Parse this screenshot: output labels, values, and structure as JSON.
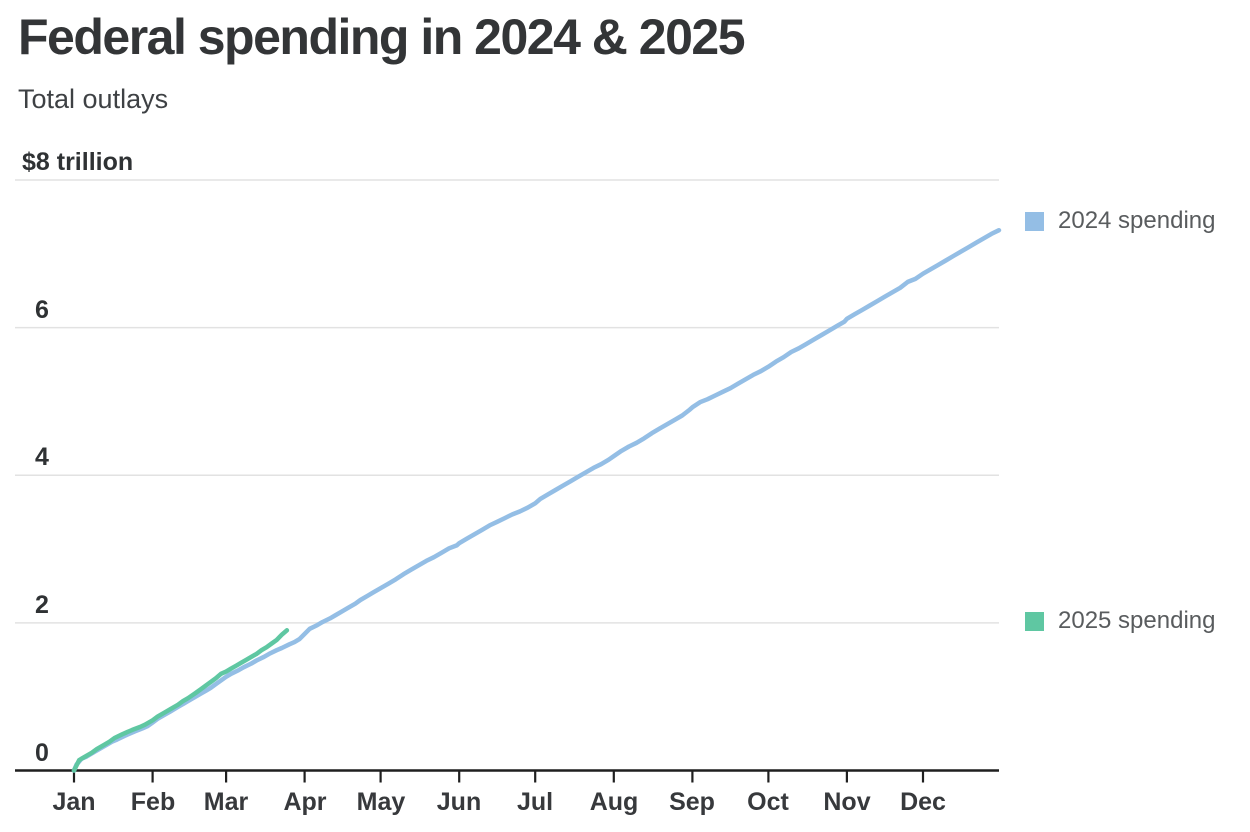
{
  "header": {
    "title": "Federal spending in 2024 & 2025",
    "subtitle": "Total outlays"
  },
  "legend": [
    {
      "label": "2024 spending",
      "color": "#94bee5"
    },
    {
      "label": "2025 spending",
      "color": "#5fc7a2"
    }
  ],
  "colors": {
    "background": "#ffffff",
    "title": "#333537",
    "subtitle": "#3e4144",
    "axis": "#1f1f1f",
    "gridline": "#e2e2e2",
    "y_tick_label": "#2f3234",
    "x_tick_label": "#37393c",
    "legend_text": "#595c5e",
    "series_2024": "#94bee5",
    "series_2025": "#5fc7a2"
  },
  "chart_data": {
    "type": "line",
    "title": "Federal spending in 2024 & 2025",
    "subtitle": "Total outlays",
    "unit": "trillion USD, cumulative total outlays",
    "x_unit": "day of year",
    "x_range_days": [
      0,
      365
    ],
    "x_tick_labels": [
      "Jan",
      "Feb",
      "Mar",
      "Apr",
      "May",
      "Jun",
      "Jul",
      "Aug",
      "Sep",
      "Oct",
      "Nov",
      "Dec"
    ],
    "x_tick_days": [
      0,
      31,
      60,
      91,
      121,
      152,
      182,
      213,
      244,
      274,
      305,
      335
    ],
    "y_ticks": [
      {
        "value": 8,
        "label": "$8 trillion"
      },
      {
        "value": 6,
        "label": "6"
      },
      {
        "value": 4,
        "label": "4"
      },
      {
        "value": 2,
        "label": "2"
      },
      {
        "value": 0,
        "label": "0"
      }
    ],
    "ylim": [
      0,
      8
    ],
    "grid": "horizontal",
    "legend_position": "right",
    "series": [
      {
        "name": "2024 spending",
        "color": "#94bee5",
        "points": [
          [
            0,
            0
          ],
          [
            1,
            0.08
          ],
          [
            3,
            0.16
          ],
          [
            5,
            0.19
          ],
          [
            8,
            0.25
          ],
          [
            10,
            0.29
          ],
          [
            13,
            0.35
          ],
          [
            15,
            0.39
          ],
          [
            17,
            0.42
          ],
          [
            20,
            0.47
          ],
          [
            22,
            0.5
          ],
          [
            24,
            0.53
          ],
          [
            27,
            0.57
          ],
          [
            29,
            0.6
          ],
          [
            31,
            0.65
          ],
          [
            33,
            0.7
          ],
          [
            36,
            0.76
          ],
          [
            38,
            0.8
          ],
          [
            41,
            0.86
          ],
          [
            43,
            0.9
          ],
          [
            45,
            0.94
          ],
          [
            48,
            1.0
          ],
          [
            50,
            1.04
          ],
          [
            52,
            1.08
          ],
          [
            54,
            1.12
          ],
          [
            56,
            1.17
          ],
          [
            58,
            1.22
          ],
          [
            60,
            1.27
          ],
          [
            62,
            1.31
          ],
          [
            65,
            1.36
          ],
          [
            67,
            1.4
          ],
          [
            70,
            1.45
          ],
          [
            72,
            1.49
          ],
          [
            75,
            1.54
          ],
          [
            77,
            1.58
          ],
          [
            80,
            1.63
          ],
          [
            82,
            1.66
          ],
          [
            85,
            1.71
          ],
          [
            87,
            1.74
          ],
          [
            89,
            1.78
          ],
          [
            91,
            1.85
          ],
          [
            93,
            1.92
          ],
          [
            96,
            1.97
          ],
          [
            98,
            2.01
          ],
          [
            101,
            2.06
          ],
          [
            103,
            2.1
          ],
          [
            106,
            2.16
          ],
          [
            108,
            2.2
          ],
          [
            111,
            2.26
          ],
          [
            113,
            2.31
          ],
          [
            116,
            2.37
          ],
          [
            118,
            2.41
          ],
          [
            121,
            2.47
          ],
          [
            124,
            2.53
          ],
          [
            127,
            2.59
          ],
          [
            130,
            2.66
          ],
          [
            133,
            2.72
          ],
          [
            136,
            2.78
          ],
          [
            139,
            2.84
          ],
          [
            142,
            2.89
          ],
          [
            145,
            2.95
          ],
          [
            148,
            3.01
          ],
          [
            151,
            3.05
          ],
          [
            152,
            3.08
          ],
          [
            155,
            3.14
          ],
          [
            158,
            3.2
          ],
          [
            161,
            3.26
          ],
          [
            164,
            3.32
          ],
          [
            167,
            3.37
          ],
          [
            170,
            3.42
          ],
          [
            173,
            3.47
          ],
          [
            176,
            3.51
          ],
          [
            179,
            3.56
          ],
          [
            182,
            3.62
          ],
          [
            184,
            3.68
          ],
          [
            187,
            3.74
          ],
          [
            190,
            3.8
          ],
          [
            193,
            3.86
          ],
          [
            196,
            3.92
          ],
          [
            199,
            3.98
          ],
          [
            202,
            4.04
          ],
          [
            205,
            4.1
          ],
          [
            208,
            4.15
          ],
          [
            211,
            4.21
          ],
          [
            213,
            4.26
          ],
          [
            216,
            4.33
          ],
          [
            219,
            4.39
          ],
          [
            222,
            4.44
          ],
          [
            225,
            4.5
          ],
          [
            228,
            4.57
          ],
          [
            231,
            4.63
          ],
          [
            234,
            4.69
          ],
          [
            237,
            4.75
          ],
          [
            240,
            4.81
          ],
          [
            243,
            4.89
          ],
          [
            244,
            4.92
          ],
          [
            247,
            4.99
          ],
          [
            250,
            5.03
          ],
          [
            253,
            5.08
          ],
          [
            256,
            5.13
          ],
          [
            259,
            5.18
          ],
          [
            262,
            5.24
          ],
          [
            265,
            5.3
          ],
          [
            268,
            5.36
          ],
          [
            271,
            5.41
          ],
          [
            274,
            5.47
          ],
          [
            277,
            5.54
          ],
          [
            280,
            5.6
          ],
          [
            283,
            5.67
          ],
          [
            286,
            5.72
          ],
          [
            289,
            5.78
          ],
          [
            292,
            5.84
          ],
          [
            295,
            5.9
          ],
          [
            298,
            5.96
          ],
          [
            301,
            6.02
          ],
          [
            304,
            6.08
          ],
          [
            305,
            6.12
          ],
          [
            308,
            6.18
          ],
          [
            311,
            6.24
          ],
          [
            314,
            6.3
          ],
          [
            317,
            6.36
          ],
          [
            320,
            6.42
          ],
          [
            323,
            6.48
          ],
          [
            326,
            6.54
          ],
          [
            329,
            6.62
          ],
          [
            332,
            6.66
          ],
          [
            335,
            6.73
          ],
          [
            338,
            6.79
          ],
          [
            341,
            6.85
          ],
          [
            344,
            6.91
          ],
          [
            347,
            6.97
          ],
          [
            350,
            7.03
          ],
          [
            353,
            7.09
          ],
          [
            356,
            7.15
          ],
          [
            359,
            7.21
          ],
          [
            362,
            7.27
          ],
          [
            365,
            7.32
          ]
        ]
      },
      {
        "name": "2025 spending",
        "color": "#5fc7a2",
        "points": [
          [
            0,
            0
          ],
          [
            2,
            0.14
          ],
          [
            4,
            0.18
          ],
          [
            7,
            0.24
          ],
          [
            9,
            0.29
          ],
          [
            12,
            0.35
          ],
          [
            14,
            0.39
          ],
          [
            16,
            0.44
          ],
          [
            19,
            0.49
          ],
          [
            21,
            0.52
          ],
          [
            23,
            0.55
          ],
          [
            26,
            0.59
          ],
          [
            28,
            0.62
          ],
          [
            31,
            0.68
          ],
          [
            33,
            0.73
          ],
          [
            36,
            0.79
          ],
          [
            38,
            0.83
          ],
          [
            41,
            0.89
          ],
          [
            43,
            0.94
          ],
          [
            45,
            0.98
          ],
          [
            48,
            1.05
          ],
          [
            50,
            1.1
          ],
          [
            52,
            1.15
          ],
          [
            54,
            1.2
          ],
          [
            56,
            1.25
          ],
          [
            58,
            1.31
          ],
          [
            60,
            1.34
          ],
          [
            62,
            1.38
          ],
          [
            64,
            1.42
          ],
          [
            66,
            1.46
          ],
          [
            68,
            1.5
          ],
          [
            70,
            1.54
          ],
          [
            72,
            1.58
          ],
          [
            74,
            1.63
          ],
          [
            76,
            1.67
          ],
          [
            78,
            1.72
          ],
          [
            80,
            1.77
          ],
          [
            82,
            1.84
          ],
          [
            84,
            1.9
          ]
        ]
      }
    ]
  }
}
